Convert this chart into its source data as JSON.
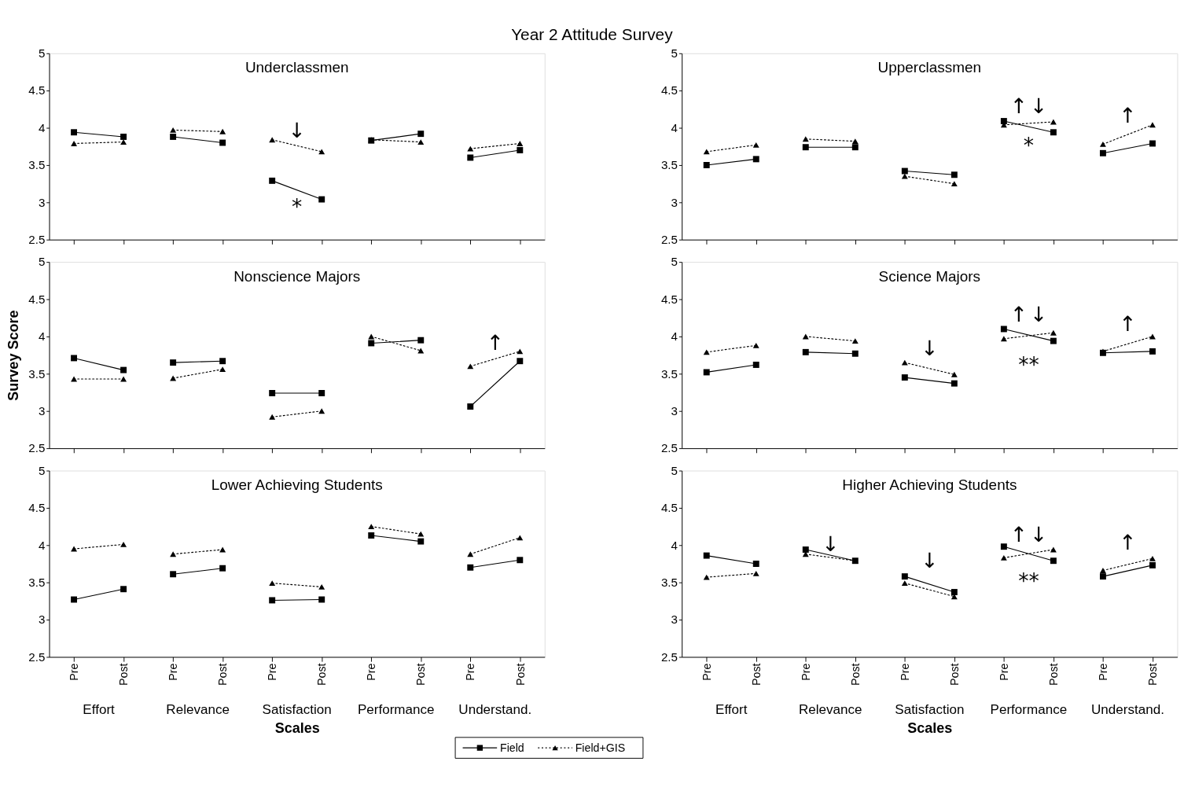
{
  "chart_data": [
    {
      "type": "line",
      "title": "Year 2 Attitude Survey",
      "subtitle": "Underclassmen",
      "categories": [
        null,
        null,
        null,
        null,
        null,
        null,
        null,
        null,
        null,
        null
      ],
      "ylim": [
        2.5,
        5
      ],
      "yticks": [
        2.5,
        3,
        3.5,
        4,
        4.5,
        5
      ],
      "grid": false,
      "series": [
        {
          "color": "#000000",
          "marker": "square",
          "line_style": "solid",
          "values": [
            3.94,
            3.88,
            3.88,
            3.8,
            3.29,
            3.04,
            3.83,
            3.92,
            3.6,
            3.7
          ]
        },
        {
          "color": "#000000",
          "marker": "triangle",
          "line_style": "dotted",
          "values": [
            3.79,
            3.81,
            3.97,
            3.95,
            3.84,
            3.68,
            3.84,
            3.81,
            3.72,
            3.79
          ]
        }
      ],
      "annotations": [
        "↓",
        "*"
      ]
    },
    {
      "type": "line",
      "subtitle": "Upperclassmen",
      "categories": [
        null,
        null,
        null,
        null,
        null,
        null,
        null,
        null,
        null,
        null
      ],
      "ylim": [
        2.5,
        5
      ],
      "yticks": [
        2.5,
        3,
        3.5,
        4,
        4.5,
        5
      ],
      "grid": false,
      "series": [
        {
          "color": "#000000",
          "marker": "square",
          "line_style": "solid",
          "values": [
            3.5,
            3.58,
            3.74,
            3.74,
            3.42,
            3.37,
            4.09,
            3.94,
            3.66,
            3.79
          ]
        },
        {
          "color": "#000000",
          "marker": "triangle",
          "line_style": "dotted",
          "values": [
            3.68,
            3.77,
            3.85,
            3.82,
            3.35,
            3.25,
            4.04,
            4.08,
            3.78,
            4.04
          ]
        }
      ],
      "annotations": [
        "↑",
        "↓",
        "*",
        "↑"
      ]
    },
    {
      "type": "line",
      "subtitle": "Nonscience Majors",
      "ylabel": "Survey Score",
      "categories": [
        null,
        null,
        null,
        null,
        null,
        null,
        null,
        null,
        null,
        null
      ],
      "ylim": [
        2.5,
        5
      ],
      "yticks": [
        2.5,
        3,
        3.5,
        4,
        4.5,
        5
      ],
      "grid": false,
      "series": [
        {
          "color": "#000000",
          "marker": "square",
          "line_style": "solid",
          "values": [
            3.71,
            3.55,
            3.65,
            3.67,
            3.24,
            3.24,
            3.91,
            3.95,
            3.06,
            3.67
          ]
        },
        {
          "color": "#000000",
          "marker": "triangle",
          "line_style": "dotted",
          "values": [
            3.43,
            3.43,
            3.44,
            3.56,
            2.92,
            3.0,
            4.0,
            3.81,
            3.6,
            3.8
          ]
        }
      ],
      "annotations": [
        "↑"
      ]
    },
    {
      "type": "line",
      "subtitle": "Science Majors",
      "categories": [
        null,
        null,
        null,
        null,
        null,
        null,
        null,
        null,
        null,
        null
      ],
      "ylim": [
        2.5,
        5
      ],
      "yticks": [
        2.5,
        3,
        3.5,
        4,
        4.5,
        5
      ],
      "grid": false,
      "series": [
        {
          "color": "#000000",
          "marker": "square",
          "line_style": "solid",
          "values": [
            3.52,
            3.62,
            3.79,
            3.77,
            3.45,
            3.37,
            4.1,
            3.94,
            3.78,
            3.8
          ]
        },
        {
          "color": "#000000",
          "marker": "triangle",
          "line_style": "dotted",
          "values": [
            3.79,
            3.88,
            4.0,
            3.94,
            3.65,
            3.49,
            3.97,
            4.05,
            3.8,
            4.0
          ]
        }
      ],
      "annotations": [
        "↓",
        "↑",
        "↓",
        "**",
        "↑"
      ]
    },
    {
      "type": "line",
      "subtitle": "Lower Achieving Students",
      "xlabel": "Scales",
      "legend": "bottom right",
      "categories": [
        "Pre",
        "Post",
        "Pre",
        "Post",
        "Pre",
        "Post",
        "Pre",
        "Post",
        "Pre",
        "Post"
      ],
      "ylim": [
        2.5,
        5
      ],
      "yticks": [
        2.5,
        3,
        3.5,
        4,
        4.5,
        5
      ],
      "grid": false,
      "series": [
        {
          "name": "Field",
          "color": "#000000",
          "marker": "square",
          "line_style": "solid",
          "values": [
            3.27,
            3.41,
            3.61,
            3.69,
            3.26,
            3.27,
            4.13,
            4.05,
            3.7,
            3.8
          ]
        },
        {
          "name": "Field+GIS",
          "color": "#000000",
          "marker": "triangle",
          "line_style": "dotted",
          "values": [
            3.95,
            4.01,
            3.88,
            3.94,
            3.49,
            3.44,
            4.25,
            4.15,
            3.88,
            4.1
          ]
        }
      ],
      "annotations": [
        "Effort",
        "Relevance",
        "Satisfaction",
        "Performance",
        "Understand."
      ]
    },
    {
      "type": "line",
      "subtitle": "Higher Achieving Students",
      "xlabel": "Scales",
      "categories": [
        "Pre",
        "Post",
        "Pre",
        "Post",
        "Pre",
        "Post",
        "Pre",
        "Post",
        "Pre",
        "Post"
      ],
      "ylim": [
        2.5,
        5
      ],
      "yticks": [
        2.5,
        3,
        3.5,
        4,
        4.5,
        5
      ],
      "grid": false,
      "series": [
        {
          "color": "#000000",
          "marker": "square",
          "line_style": "solid",
          "values": [
            3.86,
            3.75,
            3.94,
            3.79,
            3.58,
            3.37,
            3.98,
            3.79,
            3.58,
            3.73
          ]
        },
        {
          "color": "#000000",
          "marker": "triangle",
          "line_style": "dotted",
          "values": [
            3.57,
            3.62,
            3.88,
            3.79,
            3.49,
            3.31,
            3.83,
            3.94,
            3.66,
            3.82
          ]
        }
      ],
      "annotations": [
        "↓",
        "↓",
        "↑",
        "↓",
        "**",
        "↑",
        "Effort",
        "Relevance",
        "Satisfaction",
        "Performance",
        "Understand."
      ]
    }
  ]
}
